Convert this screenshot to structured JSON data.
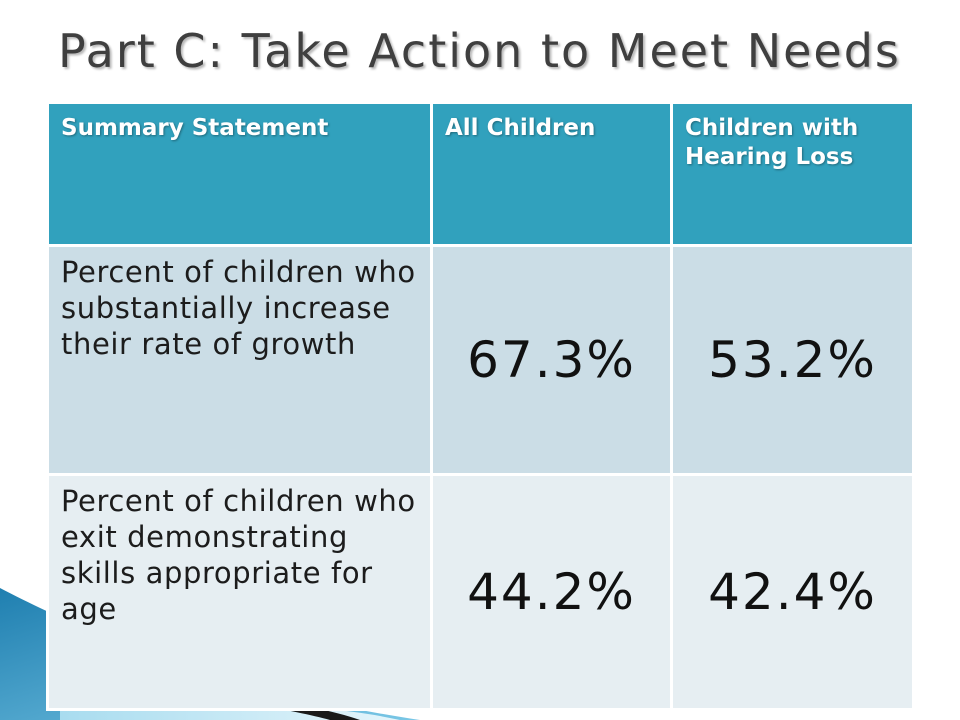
{
  "slide": {
    "title": "Part C: Take Action to Meet Needs"
  },
  "table": {
    "headers": [
      "Summary Statement",
      "All Children",
      "Children with Hearing Loss"
    ],
    "rows": [
      {
        "statement": "Percent of children who substantially increase their rate of growth",
        "all_children": "67.3%",
        "hearing_loss": "53.2%"
      },
      {
        "statement": "Percent of children who exit demonstrating skills appropriate for age",
        "all_children": "44.2%",
        "hearing_loss": "42.4%"
      }
    ]
  },
  "colors": {
    "header_background": "#31a1bd",
    "row1_background": "#cbdde6",
    "row2_background": "#e6eef2",
    "title_text": "#3f3f3f"
  }
}
